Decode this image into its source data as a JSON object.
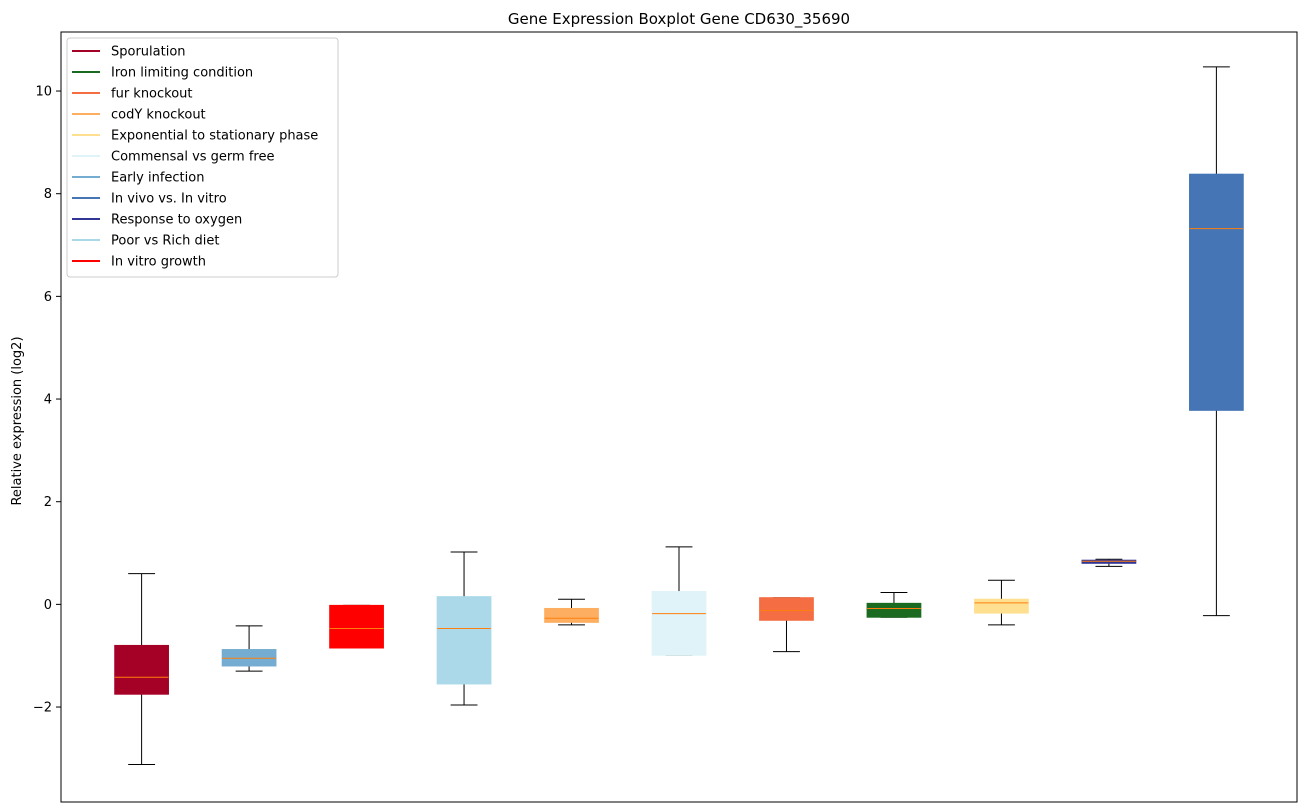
{
  "chart_data": {
    "type": "boxplot",
    "title": "Gene Expression Boxplot Gene CD630_35690",
    "ylabel": "Relative expression (log2)",
    "xlabel": "",
    "ylim": [
      -3.85,
      11.15
    ],
    "yticks": [
      -2,
      0,
      2,
      4,
      6,
      8,
      10
    ],
    "grid": false,
    "legend_position": "top-left",
    "legend": [
      {
        "label": "Sporulation",
        "color": "#a50026"
      },
      {
        "label": "Iron limiting condition",
        "color": "#1a6a21"
      },
      {
        "label": "fur knockout",
        "color": "#f46d43"
      },
      {
        "label": "codY knockout",
        "color": "#fdae61"
      },
      {
        "label": "Exponential to stationary phase",
        "color": "#fee090"
      },
      {
        "label": "Commensal vs germ free",
        "color": "#e0f3f8"
      },
      {
        "label": "Early infection",
        "color": "#74add1"
      },
      {
        "label": "In vivo vs. In vitro",
        "color": "#4575b4"
      },
      {
        "label": "Response to oxygen",
        "color": "#313695"
      },
      {
        "label": "Poor vs Rich diet",
        "color": "#abd9e9"
      },
      {
        "label": "In vitro growth",
        "color": "#ff0000"
      }
    ],
    "boxes": [
      {
        "group": "Sporulation",
        "color": "#a50026",
        "whislo": -3.12,
        "q1": -1.75,
        "med": -1.42,
        "q3": -0.8,
        "whishi": 0.6
      },
      {
        "group": "Early infection",
        "color": "#74add1",
        "whislo": -1.3,
        "q1": -1.2,
        "med": -1.05,
        "q3": -0.88,
        "whishi": -0.42
      },
      {
        "group": "In vitro growth",
        "color": "#ff0000",
        "whislo": -0.85,
        "q1": -0.85,
        "med": -0.47,
        "q3": -0.02,
        "whishi": -0.02
      },
      {
        "group": "Poor vs Rich diet",
        "color": "#abd9e9",
        "whislo": -1.96,
        "q1": -1.55,
        "med": -0.47,
        "q3": 0.15,
        "whishi": 1.02
      },
      {
        "group": "codY knockout",
        "color": "#fdae61",
        "whislo": -0.4,
        "q1": -0.35,
        "med": -0.27,
        "q3": -0.08,
        "whishi": 0.1
      },
      {
        "group": "Commensal vs germ free",
        "color": "#e0f3f8",
        "whislo": -0.99,
        "q1": -0.99,
        "med": -0.18,
        "q3": 0.25,
        "whishi": 1.12
      },
      {
        "group": "fur knockout",
        "color": "#f46d43",
        "whislo": -0.92,
        "q1": -0.31,
        "med": -0.12,
        "q3": 0.13,
        "whishi": 0.13
      },
      {
        "group": "Iron limiting condition",
        "color": "#1a6a21",
        "whislo": -0.25,
        "q1": -0.25,
        "med": -0.08,
        "q3": 0.02,
        "whishi": 0.23
      },
      {
        "group": "Exponential to stationary phase",
        "color": "#fee090",
        "whislo": -0.4,
        "q1": -0.17,
        "med": 0.03,
        "q3": 0.1,
        "whishi": 0.47
      },
      {
        "group": "Response to oxygen",
        "color": "#313695",
        "whislo": 0.74,
        "q1": 0.8,
        "med": 0.84,
        "q3": 0.86,
        "whishi": 0.88
      },
      {
        "group": "In vivo vs. In vitro",
        "color": "#4575b4",
        "whislo": -0.22,
        "q1": 3.78,
        "med": 7.32,
        "q3": 8.38,
        "whishi": 10.47
      }
    ],
    "median_color": "#ff7f0e"
  }
}
